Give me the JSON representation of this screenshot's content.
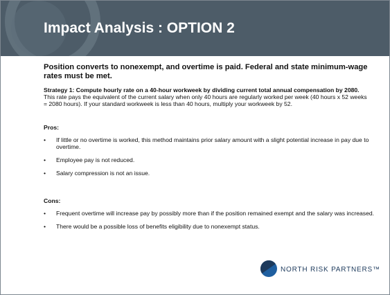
{
  "header": {
    "title": "Impact Analysis :  OPTION 2"
  },
  "body": {
    "heading": "Position converts to nonexempt, and overtime is paid. Federal and state minimum-wage rates must be met.",
    "strategy_bold": "Strategy 1: Compute hourly rate on a 40-hour workweek by dividing current total annual compensation by 2080.",
    "strategy_text": " This rate pays the equivalent of the current salary when only 40 hours are regularly worked per week (40 hours x 52 weeks = 2080 hours). If your standard workweek is less than 40 hours, multiply your workweek by 52.",
    "pros_label": "Pros:",
    "pros": [
      "If little or no overtime is worked, this method maintains prior salary amount with a slight potential increase in pay due to overtime.",
      "Employee pay is not reduced.",
      "Salary compression is not an issue."
    ],
    "cons_label": "Cons:",
    "cons": [
      "Frequent overtime will increase pay by possibly more than if the position remained exempt and the salary was increased.",
      "There would be a possible loss of benefits eligibility due to nonexempt status."
    ]
  },
  "logo": {
    "text": "NORTH RISK PARTNERS™"
  }
}
